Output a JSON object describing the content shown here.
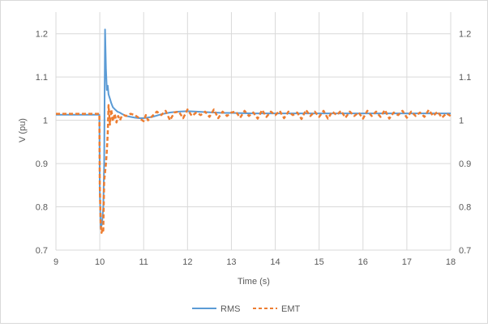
{
  "chart_data": {
    "type": "line",
    "xlabel": "Time (s)",
    "ylabel": "V (pu)",
    "xlim": [
      9,
      18
    ],
    "ylim": [
      0.7,
      1.25
    ],
    "ylim_right": [
      0.7,
      1.25
    ],
    "x_ticks": [
      "9",
      "10",
      "11",
      "12",
      "13",
      "14",
      "15",
      "16",
      "17",
      "18"
    ],
    "y_ticks": [
      "0.7",
      "0.8",
      "0.9",
      "1",
      "1.1",
      "1.2"
    ],
    "y_ticks_right": [
      "0.7",
      "0.8",
      "0.9",
      "1",
      "1.1",
      "1.2"
    ],
    "grid": true,
    "legend_position": "bottom",
    "series": [
      {
        "name": "RMS",
        "color": "#5b9bd5",
        "dash": "solid",
        "x": [
          9,
          9.5,
          9.99,
          10.0,
          10.02,
          10.05,
          10.08,
          10.1,
          10.12,
          10.14,
          10.16,
          10.18,
          10.2,
          10.23,
          10.26,
          10.3,
          10.35,
          10.4,
          10.45,
          10.5,
          10.6,
          10.7,
          10.8,
          10.9,
          11.0,
          11.2,
          11.4,
          11.6,
          11.8,
          12.0,
          12.2,
          12.4,
          12.6,
          12.8,
          13.0,
          13.5,
          14.0,
          14.5,
          15.0,
          15.5,
          16.0,
          16.5,
          17.0,
          17.5,
          18.0
        ],
        "y": [
          1.013,
          1.013,
          1.013,
          0.84,
          0.75,
          0.76,
          0.8,
          0.9,
          1.21,
          1.12,
          1.07,
          1.08,
          1.06,
          1.05,
          1.04,
          1.03,
          1.025,
          1.02,
          1.018,
          1.015,
          1.01,
          1.008,
          1.006,
          1.005,
          1.005,
          1.008,
          1.014,
          1.018,
          1.02,
          1.021,
          1.02,
          1.019,
          1.018,
          1.017,
          1.017,
          1.016,
          1.016,
          1.016,
          1.016,
          1.016,
          1.016,
          1.016,
          1.016,
          1.016,
          1.016
        ]
      },
      {
        "name": "EMT",
        "color": "#ed7d31",
        "dash": "dashed",
        "x": [
          9,
          9.5,
          9.99,
          10.0,
          10.02,
          10.04,
          10.06,
          10.08,
          10.1,
          10.12,
          10.14,
          10.16,
          10.18,
          10.2,
          10.23,
          10.26,
          10.3,
          10.34,
          10.38,
          10.42,
          10.46,
          10.5,
          10.55,
          10.6,
          10.7,
          10.8,
          10.9,
          11.0,
          11.05,
          11.1,
          11.2,
          11.3,
          11.4,
          11.5,
          11.6,
          11.7,
          11.8,
          11.9,
          12.0,
          12.1,
          12.2,
          12.3,
          12.4,
          12.5,
          12.6,
          12.7,
          12.8,
          12.9,
          13.0,
          13.1,
          13.2,
          13.3,
          13.4,
          13.5,
          13.6,
          13.7,
          13.8,
          13.9,
          14.0,
          14.1,
          14.2,
          14.3,
          14.4,
          14.5,
          14.6,
          14.7,
          14.8,
          14.9,
          15.0,
          15.1,
          15.2,
          15.3,
          15.4,
          15.5,
          15.6,
          15.7,
          15.8,
          15.9,
          16.0,
          16.1,
          16.2,
          16.3,
          16.4,
          16.5,
          16.6,
          16.7,
          16.8,
          16.9,
          17.0,
          17.1,
          17.2,
          17.3,
          17.4,
          17.5,
          17.6,
          17.7,
          17.8,
          17.9,
          18.0
        ],
        "y": [
          1.015,
          1.015,
          1.015,
          0.85,
          0.76,
          0.74,
          0.75,
          0.745,
          0.86,
          0.88,
          0.9,
          0.93,
          0.97,
          1.035,
          0.99,
          1.025,
          0.998,
          1.015,
          0.995,
          1.01,
          1.0,
          1.01,
          1.012,
          1.01,
          1.015,
          1.012,
          1.005,
          0.998,
          1.012,
          1.0,
          1.01,
          1.02,
          1.012,
          1.022,
          1.0,
          1.018,
          1.02,
          1.005,
          1.025,
          1.01,
          1.018,
          1.012,
          1.02,
          1.008,
          1.025,
          1.005,
          1.02,
          1.01,
          1.018,
          1.02,
          1.006,
          1.022,
          1.01,
          1.018,
          1.004,
          1.024,
          1.008,
          1.02,
          1.012,
          1.022,
          1.005,
          1.02,
          1.012,
          1.018,
          1.003,
          1.024,
          1.01,
          1.02,
          1.008,
          1.022,
          1.004,
          1.02,
          1.012,
          1.022,
          1.006,
          1.02,
          1.01,
          1.018,
          1.004,
          1.022,
          1.01,
          1.02,
          1.008,
          1.024,
          1.004,
          1.018,
          1.012,
          1.022,
          1.006,
          1.02,
          1.01,
          1.018,
          1.008,
          1.024,
          1.01,
          1.02,
          1.006,
          1.016,
          1.01
        ]
      }
    ]
  }
}
